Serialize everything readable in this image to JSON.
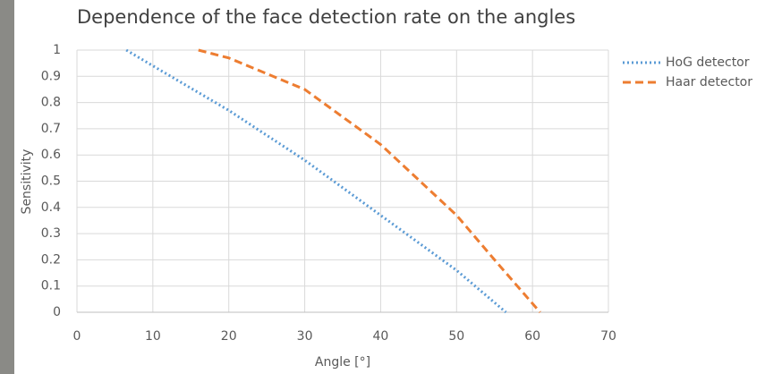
{
  "chart_data": {
    "type": "line",
    "title": "Dependence of the face detection rate on the angles",
    "x_label": "Angle [°]",
    "y_label": "Sensitivity",
    "series": [
      {
        "name": "HoG detector",
        "color": "#5b9bd5",
        "dash": "dotted",
        "x": [
          6.5,
          10,
          20,
          30,
          40,
          50,
          56.5
        ],
        "values": [
          1,
          0.94,
          0.77,
          0.58,
          0.37,
          0.16,
          0
        ]
      },
      {
        "name": "Haar detector",
        "color": "#ed7d31",
        "dash": "dashed",
        "x": [
          16,
          20,
          30,
          40,
          50,
          55,
          61
        ],
        "values": [
          1,
          0.97,
          0.85,
          0.64,
          0.37,
          0.2,
          0
        ]
      }
    ],
    "xlim": [
      0,
      70
    ],
    "xticks": [
      0,
      10,
      20,
      30,
      40,
      50,
      60,
      70
    ],
    "ylim": [
      0,
      1
    ],
    "yticks": [
      0,
      0.1,
      0.2,
      0.3,
      0.4,
      0.5,
      0.6,
      0.7,
      0.8,
      0.9,
      1
    ],
    "grid": true,
    "legend": "right"
  }
}
